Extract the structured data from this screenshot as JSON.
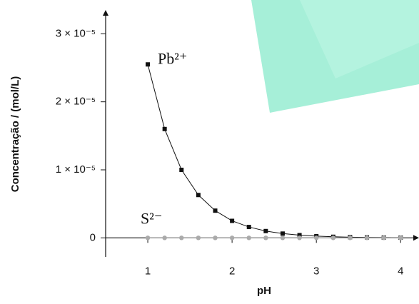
{
  "chart_data": {
    "type": "line",
    "xlabel": "pH",
    "ylabel": "Concentração / (mol/L)",
    "x": [
      1,
      1.2,
      1.4,
      1.6,
      1.8,
      2,
      2.2,
      2.4,
      2.6,
      2.8,
      3,
      3.2,
      3.4,
      3.6,
      3.8,
      4
    ],
    "series": [
      {
        "name": "Pb²⁺",
        "color": "#111111",
        "values": [
          2.55e-05,
          1.6e-05,
          1e-05,
          6.3e-06,
          4e-06,
          2.5e-06,
          1.6e-06,
          1e-06,
          6.3e-07,
          4e-07,
          2.5e-07,
          1.6e-07,
          1e-07,
          6.3e-08,
          4e-08,
          2.5e-08
        ]
      },
      {
        "name": "S²⁻",
        "color": "#aaaaaa",
        "values": [
          0,
          0,
          0,
          0,
          0,
          0,
          0,
          0,
          0,
          0,
          0,
          0,
          0,
          0,
          0,
          0
        ]
      }
    ],
    "xlim": [
      0.5,
      4.15
    ],
    "xticks": [
      1,
      2,
      3,
      4
    ],
    "ylim": [
      -2.8e-06,
      3.35e-05
    ],
    "yticks": [
      0,
      {
        "value": 1e-05,
        "label": "1 × 10⁻⁵"
      },
      {
        "value": 2e-05,
        "label": "2 × 10⁻⁵"
      },
      {
        "value": 3e-05,
        "label": "3 × 10⁻⁵"
      }
    ],
    "grid": false
  }
}
